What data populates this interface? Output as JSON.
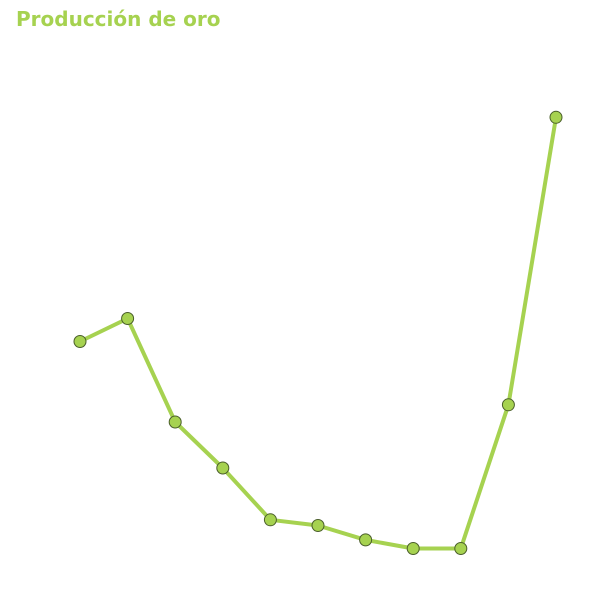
{
  "chart_data": {
    "type": "line",
    "title": "Producción de oro",
    "xlabel": "",
    "ylabel": "",
    "grid": false,
    "legend": "none",
    "x": [
      1,
      2,
      3,
      4,
      5,
      6,
      7,
      8,
      9,
      10,
      11
    ],
    "series": [
      {
        "values": [
          23,
          27,
          9,
          1,
          -8,
          -9,
          -11.5,
          -13,
          -13,
          12,
          62
        ],
        "color": "#a6d250"
      }
    ],
    "ylim": [
      -15,
      65
    ],
    "point_fill": "#a6d250",
    "point_stroke": "#4a5e2a"
  }
}
